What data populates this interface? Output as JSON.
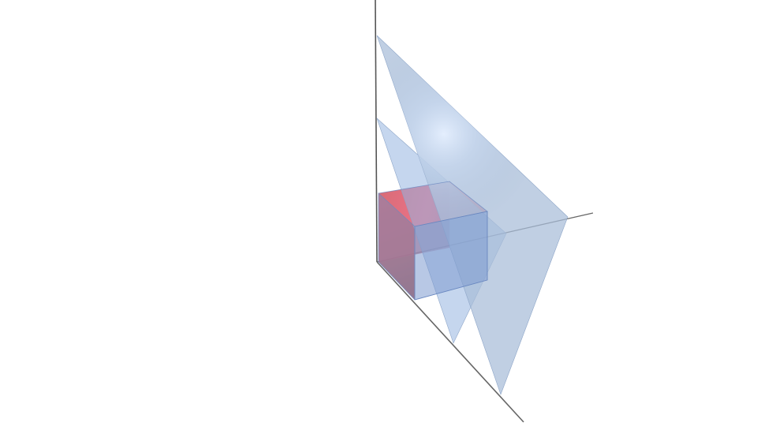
{
  "scene": {
    "background": "#ffffff",
    "axis_color": "#555555",
    "plane_color": "#a8bcd8",
    "plane_edge_color": "#8ea6c8",
    "plane_highlight_color": "#e6f0ff",
    "cube_color": "#e5707c",
    "cube_front_color": "#7d9ad0",
    "cube_edge_color": "#6a88c0",
    "objects": [
      "x-axis",
      "y-axis",
      "z-axis",
      "large-plane",
      "small-plane",
      "unit-cube"
    ]
  }
}
